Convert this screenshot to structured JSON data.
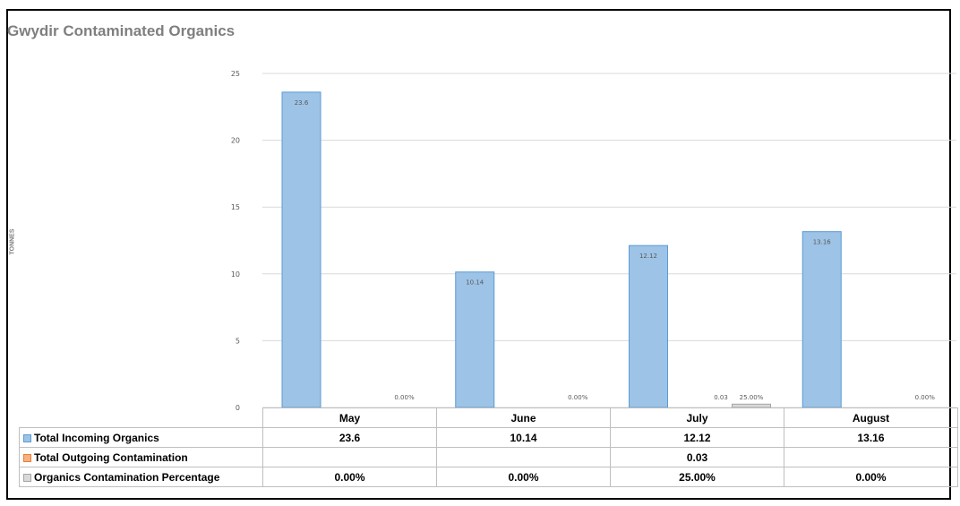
{
  "chart_data": {
    "type": "bar",
    "title": "Gwydir Contaminated Organics",
    "ylabel": "TONNES",
    "xlabel": "",
    "ylim": [
      0,
      25
    ],
    "yticks": [
      0,
      5,
      10,
      15,
      20,
      25
    ],
    "grid": true,
    "categories": [
      "May",
      "June",
      "July",
      "August"
    ],
    "series": [
      {
        "name": "Total Incoming Organics",
        "values": [
          23.6,
          10.14,
          12.12,
          13.16
        ],
        "labels": [
          "23.6",
          "10.14",
          "12.12",
          "13.16"
        ],
        "color": "#9dc3e6",
        "border": "#5b9bd5"
      },
      {
        "name": "Total Outgoing Contamination",
        "values": [
          null,
          null,
          0.03,
          null
        ],
        "labels": [
          "",
          "",
          "0.03",
          ""
        ],
        "color": "#f4b183",
        "border": "#ed7d31"
      },
      {
        "name": "Organics Contamination Percentage",
        "values": [
          0.0,
          0.0,
          0.25,
          0.0
        ],
        "labels": [
          "0.00%",
          "0.00%",
          "25.00%",
          "0.00%"
        ],
        "color": "#d9d9d9",
        "border": "#a5a5a5"
      }
    ],
    "legend_position": "data-table"
  }
}
